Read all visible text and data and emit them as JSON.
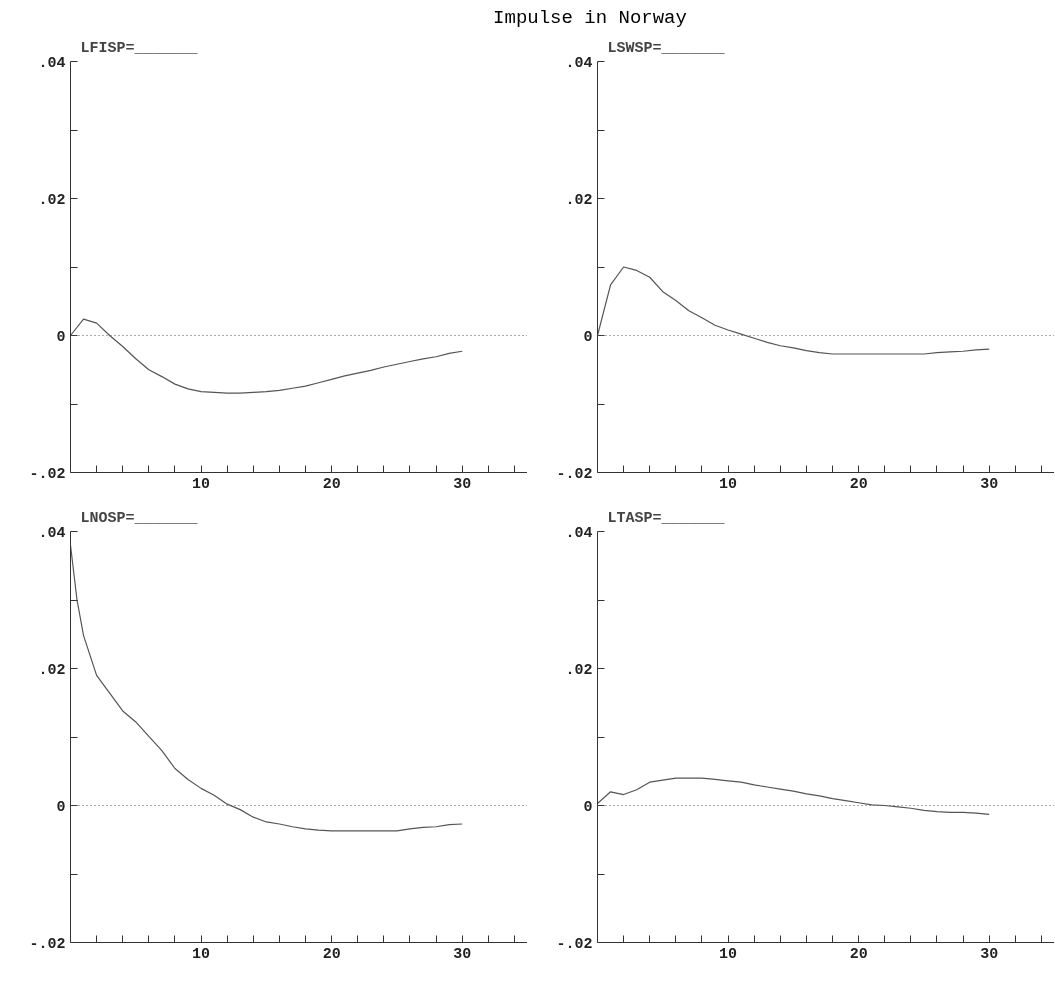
{
  "chart_data": [
    {
      "type": "line",
      "title": "LFISP=_______",
      "annotations": [
        "Impulse in Norway"
      ],
      "x": [
        0,
        1,
        2,
        3,
        4,
        5,
        6,
        7,
        8,
        9,
        10,
        11,
        12,
        13,
        14,
        15,
        16,
        17,
        18,
        19,
        20,
        21,
        22,
        23,
        24,
        25,
        26,
        27,
        28,
        29,
        30
      ],
      "series": [
        {
          "color": "#555555",
          "values": [
            0,
            0.0024,
            0.0018,
            0,
            -0.0016,
            -0.0034,
            -0.005,
            -0.006,
            -0.0071,
            -0.0078,
            -0.0082,
            -0.0083,
            -0.0084,
            -0.0084,
            -0.0083,
            -0.0082,
            -0.008,
            -0.0077,
            -0.0074,
            -0.0069,
            -0.0064,
            -0.0059,
            -0.0055,
            -0.0051,
            -0.0046,
            -0.0042,
            -0.0038,
            -0.0034,
            -0.0031,
            -0.0026,
            -0.0023
          ]
        }
      ],
      "xlim": [
        0,
        35
      ],
      "xticks": [
        {
          "value": 2,
          "label": null
        },
        {
          "value": 4,
          "label": null
        },
        {
          "value": 6,
          "label": null
        },
        {
          "value": 8,
          "label": null
        },
        10,
        {
          "value": 12,
          "label": null
        },
        {
          "value": 14,
          "label": null
        },
        {
          "value": 16,
          "label": null
        },
        {
          "value": 18,
          "label": null
        },
        20,
        {
          "value": 22,
          "label": null
        },
        {
          "value": 24,
          "label": null
        },
        {
          "value": 26,
          "label": null
        },
        {
          "value": 28,
          "label": null
        },
        30,
        {
          "value": 32,
          "label": null
        },
        {
          "value": 34,
          "label": null
        }
      ],
      "ylim": [
        -0.02,
        0.04
      ],
      "yticks": [
        {
          "value": -0.02,
          "label": "-.02"
        },
        {
          "value": -0.01,
          "label": null
        },
        0,
        {
          "value": 0.01,
          "label": null
        },
        {
          "value": 0.02,
          "label": ".02"
        },
        {
          "value": 0.03,
          "label": null
        },
        {
          "value": 0.04,
          "label": ".04"
        }
      ],
      "ref_lines": [
        {
          "axis": "y",
          "value": 0,
          "line_style": "dotted"
        }
      ]
    },
    {
      "type": "line",
      "title": "LSWSP=_______",
      "x": [
        0,
        1,
        2,
        3,
        4,
        5,
        6,
        7,
        8,
        9,
        10,
        11,
        12,
        13,
        14,
        15,
        16,
        17,
        18,
        19,
        20,
        21,
        22,
        23,
        24,
        25,
        26,
        27,
        28,
        29,
        30
      ],
      "series": [
        {
          "color": "#555555",
          "values": [
            0,
            0.0074,
            0.01,
            0.0095,
            0.0085,
            0.0064,
            0.0051,
            0.0036,
            0.0026,
            0.0015,
            0.0008,
            0.0002,
            -0.0004,
            -0.001,
            -0.0015,
            -0.0018,
            -0.0022,
            -0.0025,
            -0.0027,
            -0.0027,
            -0.0027,
            -0.0027,
            -0.0027,
            -0.0027,
            -0.0027,
            -0.0027,
            -0.0025,
            -0.0024,
            -0.0023,
            -0.0021,
            -0.002
          ]
        }
      ],
      "xlim": [
        0,
        35
      ],
      "xticks": [
        {
          "value": 2,
          "label": null
        },
        {
          "value": 4,
          "label": null
        },
        {
          "value": 6,
          "label": null
        },
        {
          "value": 8,
          "label": null
        },
        10,
        {
          "value": 12,
          "label": null
        },
        {
          "value": 14,
          "label": null
        },
        {
          "value": 16,
          "label": null
        },
        {
          "value": 18,
          "label": null
        },
        20,
        {
          "value": 22,
          "label": null
        },
        {
          "value": 24,
          "label": null
        },
        {
          "value": 26,
          "label": null
        },
        {
          "value": 28,
          "label": null
        },
        30,
        {
          "value": 32,
          "label": null
        },
        {
          "value": 34,
          "label": null
        }
      ],
      "ylim": [
        -0.02,
        0.04
      ],
      "yticks": [
        {
          "value": -0.02,
          "label": "-.02"
        },
        {
          "value": -0.01,
          "label": null
        },
        0,
        {
          "value": 0.01,
          "label": null
        },
        {
          "value": 0.02,
          "label": ".02"
        },
        {
          "value": 0.03,
          "label": null
        },
        {
          "value": 0.04,
          "label": ".04"
        }
      ],
      "ref_lines": [
        {
          "axis": "y",
          "value": 0,
          "line_style": "dotted"
        }
      ]
    },
    {
      "type": "line",
      "title": "LNOSP=_______",
      "x": [
        0,
        0.5,
        1,
        2,
        3,
        4,
        5,
        6,
        7,
        8,
        9,
        10,
        11,
        12,
        13,
        14,
        15,
        16,
        17,
        18,
        19,
        20,
        21,
        22,
        23,
        24,
        25,
        26,
        27,
        28,
        29,
        30
      ],
      "series": [
        {
          "color": "#555555",
          "values": [
            0.038,
            0.03,
            0.0248,
            0.019,
            0.0164,
            0.0138,
            0.0122,
            0.0101,
            0.008,
            0.0054,
            0.0038,
            0.0025,
            0.0015,
            0.0002,
            -0.0006,
            -0.0017,
            -0.0024,
            -0.0027,
            -0.0031,
            -0.0034,
            -0.0036,
            -0.0037,
            -0.0037,
            -0.0037,
            -0.0037,
            -0.0037,
            -0.0037,
            -0.0034,
            -0.0032,
            -0.0031,
            -0.0028,
            -0.0027
          ]
        }
      ],
      "xlim": [
        0,
        35
      ],
      "xticks": [
        {
          "value": 2,
          "label": null
        },
        {
          "value": 4,
          "label": null
        },
        {
          "value": 6,
          "label": null
        },
        {
          "value": 8,
          "label": null
        },
        10,
        {
          "value": 12,
          "label": null
        },
        {
          "value": 14,
          "label": null
        },
        {
          "value": 16,
          "label": null
        },
        {
          "value": 18,
          "label": null
        },
        20,
        {
          "value": 22,
          "label": null
        },
        {
          "value": 24,
          "label": null
        },
        {
          "value": 26,
          "label": null
        },
        {
          "value": 28,
          "label": null
        },
        30,
        {
          "value": 32,
          "label": null
        },
        {
          "value": 34,
          "label": null
        }
      ],
      "ylim": [
        -0.02,
        0.04
      ],
      "yticks": [
        {
          "value": -0.02,
          "label": "-.02"
        },
        {
          "value": -0.01,
          "label": null
        },
        0,
        {
          "value": 0.01,
          "label": null
        },
        {
          "value": 0.02,
          "label": ".02"
        },
        {
          "value": 0.03,
          "label": null
        },
        {
          "value": 0.04,
          "label": ".04"
        }
      ],
      "ref_lines": [
        {
          "axis": "y",
          "value": 0,
          "line_style": "dotted"
        }
      ]
    },
    {
      "type": "line",
      "title": "LTASP=_______",
      "x": [
        0,
        1,
        2,
        3,
        4,
        5,
        6,
        7,
        8,
        9,
        10,
        11,
        12,
        13,
        14,
        15,
        16,
        17,
        18,
        19,
        20,
        21,
        22,
        23,
        24,
        25,
        26,
        27,
        28,
        29,
        30
      ],
      "series": [
        {
          "color": "#555555",
          "values": [
            0.0003,
            0.002,
            0.0016,
            0.0023,
            0.0034,
            0.0037,
            0.004,
            0.004,
            0.004,
            0.0038,
            0.0036,
            0.0034,
            0.003,
            0.0027,
            0.0024,
            0.0021,
            0.0017,
            0.0014,
            0.001,
            0.0007,
            0.0004,
            0.0001,
            0,
            -0.0002,
            -0.0004,
            -0.0007,
            -0.0009,
            -0.001,
            -0.001,
            -0.0011,
            -0.0013
          ]
        }
      ],
      "xlim": [
        0,
        35
      ],
      "xticks": [
        {
          "value": 2,
          "label": null
        },
        {
          "value": 4,
          "label": null
        },
        {
          "value": 6,
          "label": null
        },
        {
          "value": 8,
          "label": null
        },
        10,
        {
          "value": 12,
          "label": null
        },
        {
          "value": 14,
          "label": null
        },
        {
          "value": 16,
          "label": null
        },
        {
          "value": 18,
          "label": null
        },
        20,
        {
          "value": 22,
          "label": null
        },
        {
          "value": 24,
          "label": null
        },
        {
          "value": 26,
          "label": null
        },
        {
          "value": 28,
          "label": null
        },
        30,
        {
          "value": 32,
          "label": null
        },
        {
          "value": 34,
          "label": null
        }
      ],
      "ylim": [
        -0.02,
        0.04
      ],
      "yticks": [
        {
          "value": -0.02,
          "label": "-.02"
        },
        {
          "value": -0.01,
          "label": null
        },
        0,
        {
          "value": 0.01,
          "label": null
        },
        {
          "value": 0.02,
          "label": ".02"
        },
        {
          "value": 0.03,
          "label": null
        },
        {
          "value": 0.04,
          "label": ".04"
        }
      ],
      "ref_lines": [
        {
          "axis": "y",
          "value": 0,
          "line_style": "dotted"
        }
      ]
    }
  ]
}
